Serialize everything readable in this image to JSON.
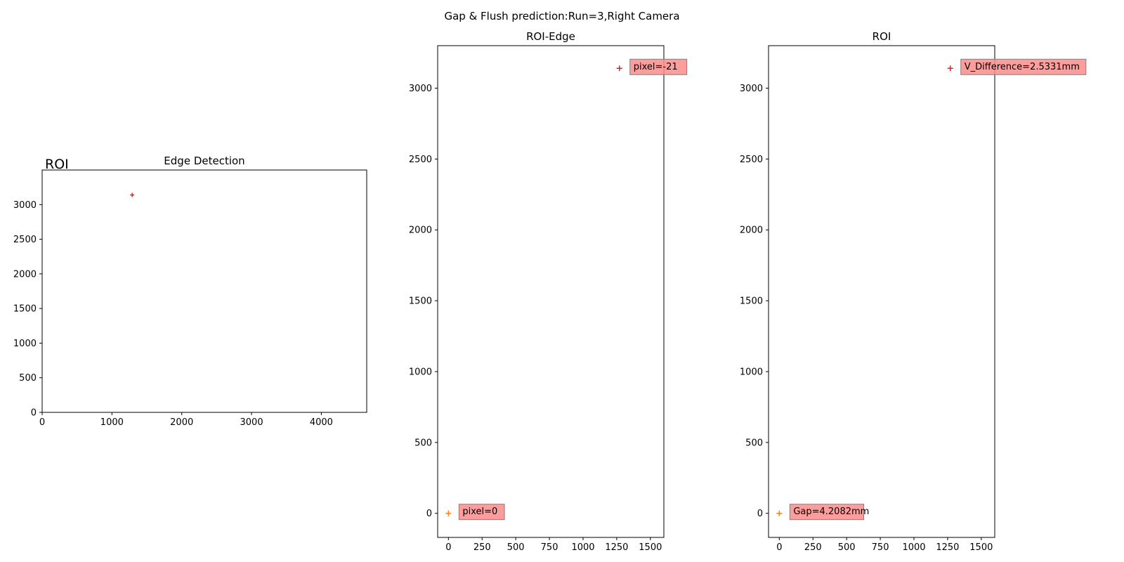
{
  "figure": {
    "suptitle": "Gap & Flush prediction:Run=3,Right Camera"
  },
  "chart_data": [
    {
      "type": "heatmap",
      "title": "Edge Detection",
      "image_label": "ROI",
      "colormap": "viridis",
      "x_ticks": [
        0,
        1000,
        2000,
        3000,
        4000
      ],
      "y_ticks": [
        0,
        500,
        1000,
        1500,
        2000,
        2500,
        3000
      ],
      "xlim": [
        0,
        4650
      ],
      "ylim": [
        3500,
        0
      ],
      "roi_box": {
        "x": [
          0,
          1600
        ],
        "y": [
          0,
          3300
        ],
        "color": "#0000ff"
      },
      "marker": {
        "x": 1290,
        "y": 3140
      }
    },
    {
      "type": "heatmap",
      "title": "ROI-Edge",
      "colormap": "viridis",
      "x_ticks": [
        0,
        250,
        500,
        750,
        1000,
        1250,
        1500
      ],
      "y_ticks": [
        0,
        500,
        1000,
        1500,
        2000,
        2500,
        3000
      ],
      "xlim": [
        -80,
        1600
      ],
      "ylim": [
        3300,
        -170
      ],
      "image_extent": {
        "x": [
          0,
          1600
        ],
        "y": [
          0,
          3300
        ]
      },
      "annotations": [
        {
          "text": "pixel=0",
          "x": 0,
          "y": 0
        },
        {
          "text": "pixel=-21",
          "x": 1270,
          "y": 3140
        }
      ]
    },
    {
      "type": "heatmap",
      "title": "ROI",
      "colormap": "viridis",
      "x_ticks": [
        0,
        250,
        500,
        750,
        1000,
        1250,
        1500
      ],
      "y_ticks": [
        0,
        500,
        1000,
        1500,
        2000,
        2500,
        3000
      ],
      "xlim": [
        -80,
        1600
      ],
      "ylim": [
        3300,
        -170
      ],
      "image_extent": {
        "x": [
          0,
          1600
        ],
        "y": [
          0,
          3300
        ]
      },
      "annotations": [
        {
          "text": "Gap=4.2082mm",
          "x": 0,
          "y": 0
        },
        {
          "text": "V_Difference=2.5331mm",
          "x": 1270,
          "y": 3140
        }
      ]
    }
  ],
  "colors": {
    "viridis_dark": "#440154",
    "viridis_mid": "#21918c",
    "viridis_bright": "#fde725",
    "roi_box": "#0000ff",
    "annotation_box": "#ff8c8c",
    "marker_orange": "#ff7f0e",
    "marker_red": "#d62728"
  }
}
